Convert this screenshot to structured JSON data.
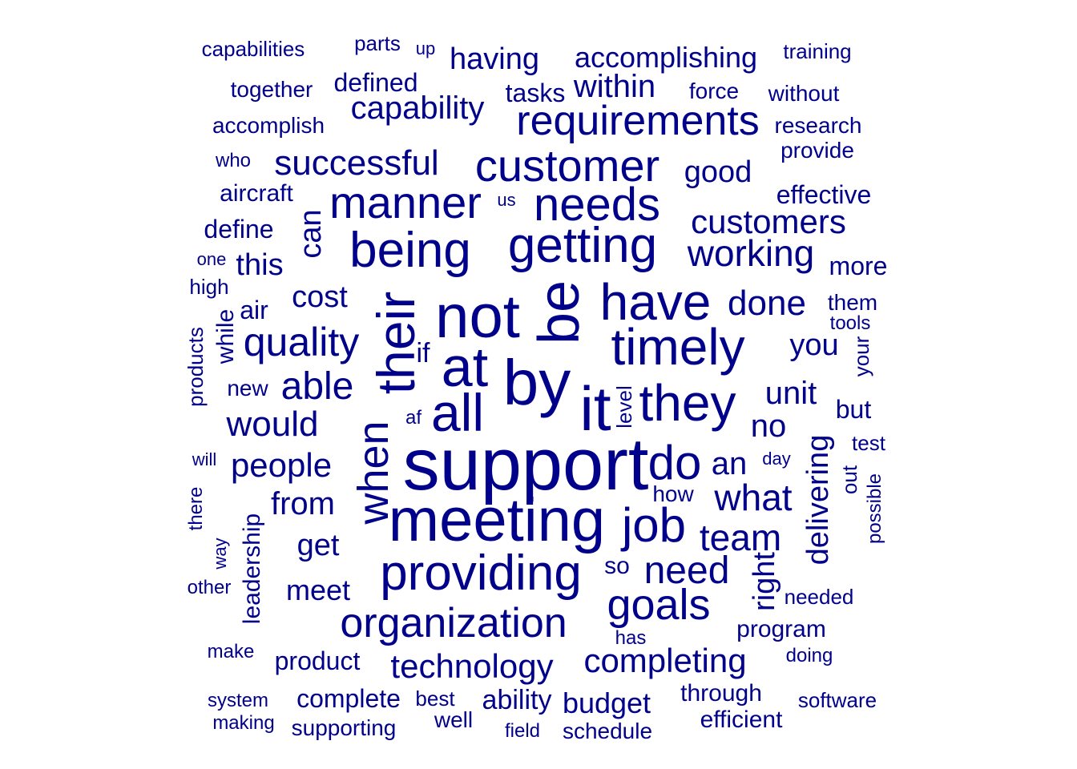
{
  "word_color": "#00008b",
  "background_color": "#ffffff",
  "words": [
    "support",
    "meeting",
    "by",
    "it",
    "not",
    "at",
    "be",
    "their",
    "all",
    "providing",
    "timely",
    "getting",
    "being",
    "have",
    "they",
    "organization",
    "customer",
    "when",
    "needs",
    "do",
    "manner",
    "requirements",
    "goals",
    "job",
    "quality",
    "technology",
    "customers",
    "completing",
    "successful",
    "need",
    "able",
    "working",
    "team",
    "done",
    "capability",
    "would",
    "people",
    "what",
    "delivering",
    "within",
    "having",
    "accomplishing",
    "good",
    "unit",
    "meet",
    "from",
    "an",
    "can",
    "get",
    "no",
    "cost",
    "this",
    "right",
    "effective",
    "you",
    "leadership",
    "defined",
    "while",
    "program",
    "budget",
    "through",
    "product",
    "ability",
    "complete",
    "efficient",
    "schedule",
    "supporting",
    "accomplish",
    "define",
    "aircraft",
    "research",
    "tasks",
    "force",
    "more",
    "without",
    "provide",
    "together",
    "capabilities",
    "parts",
    "training",
    "but",
    "them",
    "air",
    "products",
    "new",
    "so",
    "if",
    "software",
    "needed",
    "make",
    "well",
    "best",
    "making",
    "system",
    "field",
    "has",
    "other",
    "doing",
    "how",
    "test",
    "level",
    "out",
    "possible",
    "your",
    "tools",
    "high",
    "there",
    "way",
    "day",
    "af",
    "will",
    "us",
    "up",
    "one",
    "who"
  ]
}
